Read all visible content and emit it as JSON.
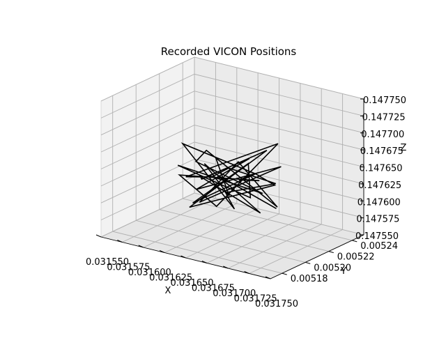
{
  "chart_data": {
    "type": "line3d",
    "title": "Recorded VICON Positions",
    "xlabel": "X",
    "ylabel": "Y",
    "zlabel": "Z",
    "xlim": [
      0.03155,
      0.03175
    ],
    "ylim": [
      0.00517,
      0.00525
    ],
    "zlim": [
      0.14755,
      0.14775
    ],
    "x_ticks": [
      "0.031550",
      "0.031575",
      "0.031600",
      "0.031625",
      "0.031650",
      "0.031675",
      "0.031700",
      "0.031725",
      "0.031750"
    ],
    "y_ticks": [
      "0.00518",
      "0.00520",
      "0.00522",
      "0.00524"
    ],
    "z_ticks": [
      "0.147550",
      "0.147575",
      "0.147600",
      "0.147625",
      "0.147650",
      "0.147675",
      "0.147700",
      "0.147725",
      "0.147750"
    ],
    "grid": true,
    "line_color": "#000000",
    "pane_colors": [
      "#f2f2f2",
      "#ebebeb",
      "#e6e6e6"
    ],
    "series": [
      {
        "points": [
          [
            0.03163,
            0.00521,
            0.14766
          ],
          [
            0.03166,
            0.0052,
            0.14762
          ],
          [
            0.03161,
            0.005215,
            0.14764
          ],
          [
            0.03169,
            0.005205,
            0.1476
          ],
          [
            0.03164,
            0.00519,
            0.14765
          ],
          [
            0.0316,
            0.00522,
            0.14761
          ],
          [
            0.03167,
            0.005225,
            0.14767
          ],
          [
            0.03162,
            0.005195,
            0.147595
          ],
          [
            0.0317,
            0.00521,
            0.14764
          ],
          [
            0.03165,
            0.00523,
            0.147625
          ],
          [
            0.031605,
            0.0052,
            0.14768
          ],
          [
            0.03168,
            0.00519,
            0.147615
          ],
          [
            0.031635,
            0.005215,
            0.147605
          ],
          [
            0.031715,
            0.0052,
            0.147655
          ],
          [
            0.031625,
            0.005225,
            0.14763
          ],
          [
            0.03166,
            0.005185,
            0.14766
          ],
          [
            0.031595,
            0.00521,
            0.14762
          ],
          [
            0.03169,
            0.00522,
            0.14769
          ],
          [
            0.031645,
            0.0052,
            0.1476
          ],
          [
            0.031615,
            0.00519,
            0.147645
          ],
          [
            0.031675,
            0.005215,
            0.147635
          ],
          [
            0.03163,
            0.00523,
            0.14761
          ],
          [
            0.0317,
            0.005195,
            0.14767
          ],
          [
            0.03161,
            0.005205,
            0.14759
          ],
          [
            0.031655,
            0.00522,
            0.14765
          ],
          [
            0.031685,
            0.0052,
            0.147625
          ],
          [
            0.03162,
            0.005185,
            0.147665
          ],
          [
            0.031665,
            0.005225,
            0.147605
          ],
          [
            0.0316,
            0.005215,
            0.14764
          ],
          [
            0.03164,
            0.005195,
            0.147685
          ],
          [
            0.03171,
            0.005205,
            0.147615
          ],
          [
            0.03165,
            0.005215,
            0.147655
          ],
          [
            0.031625,
            0.0052,
            0.1476
          ],
          [
            0.03168,
            0.00523,
            0.147645
          ],
          [
            0.031635,
            0.00519,
            0.14763
          ],
          [
            0.03167,
            0.00521,
            0.14767
          ],
          [
            0.031605,
            0.00522,
            0.147615
          ],
          [
            0.03166,
            0.005195,
            0.14765
          ],
          [
            0.031695,
            0.005215,
            0.1476
          ],
          [
            0.03164,
            0.005205,
            0.14764
          ]
        ]
      }
    ]
  }
}
